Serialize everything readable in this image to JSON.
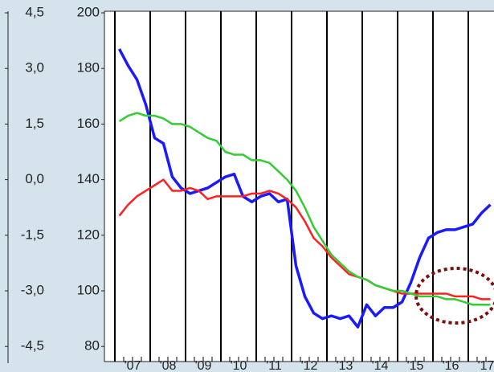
{
  "chart_data": {
    "type": "line",
    "categories": [
      null,
      "'07",
      null,
      null,
      null,
      "'08",
      null,
      null,
      null,
      "'09",
      null,
      null,
      null,
      "'10",
      null,
      null,
      null,
      "'11",
      null,
      null,
      null,
      "'12",
      null,
      null,
      null,
      "'13",
      null,
      null,
      null,
      "'14",
      null,
      null,
      null,
      "'15",
      null,
      null,
      null,
      "'16",
      null,
      null,
      null,
      "'17",
      null
    ],
    "series": [
      {
        "name": null,
        "color": "#1a1aff",
        "values": [
          187,
          181,
          176,
          167,
          155,
          153,
          141,
          137,
          135,
          136,
          137,
          139,
          141,
          142,
          134,
          132,
          134,
          135,
          132,
          133,
          109,
          98,
          92,
          90,
          91,
          90,
          91,
          87,
          95,
          91,
          94,
          94,
          96,
          103,
          112,
          119,
          121,
          122,
          122,
          123,
          124,
          128,
          131
        ]
      },
      {
        "name": null,
        "color": "#ff2020",
        "values": [
          127,
          131,
          134,
          136,
          138,
          140,
          136,
          136,
          137,
          136,
          133,
          134,
          134,
          134,
          134,
          135,
          135,
          136,
          135,
          133,
          130,
          125,
          119,
          116,
          112,
          109,
          106,
          105,
          104,
          102,
          101,
          100,
          99,
          99,
          99,
          99,
          99,
          99,
          98,
          98,
          98,
          97,
          97
        ]
      },
      {
        "name": null,
        "color": "#33cc33",
        "values": [
          161,
          163,
          164,
          163,
          163,
          162,
          160,
          160,
          159,
          157,
          155,
          154,
          150,
          149,
          149,
          147,
          147,
          146,
          143,
          140,
          136,
          130,
          123,
          118,
          113,
          110,
          107,
          105,
          104,
          102,
          101,
          100,
          100,
          99,
          98,
          98,
          98,
          97,
          97,
          96,
          95,
          95,
          95
        ]
      }
    ],
    "ylim": [
      80,
      200
    ],
    "yticks": [
      80,
      100,
      120,
      140,
      160,
      180,
      200
    ],
    "y2lim": [
      -4.5,
      4.5
    ],
    "y2ticks": [
      {
        "value": -4.5,
        "label": "-4,5"
      },
      {
        "value": -3.0,
        "label": "-3,0"
      },
      {
        "value": -1.5,
        "label": "-1,5"
      },
      {
        "value": 0.0,
        "label": "0,0"
      },
      {
        "value": 1.5,
        "label": "1,5"
      },
      {
        "value": 3.0,
        "label": "3,0"
      },
      {
        "value": 4.5,
        "label": "4,5"
      }
    ]
  }
}
